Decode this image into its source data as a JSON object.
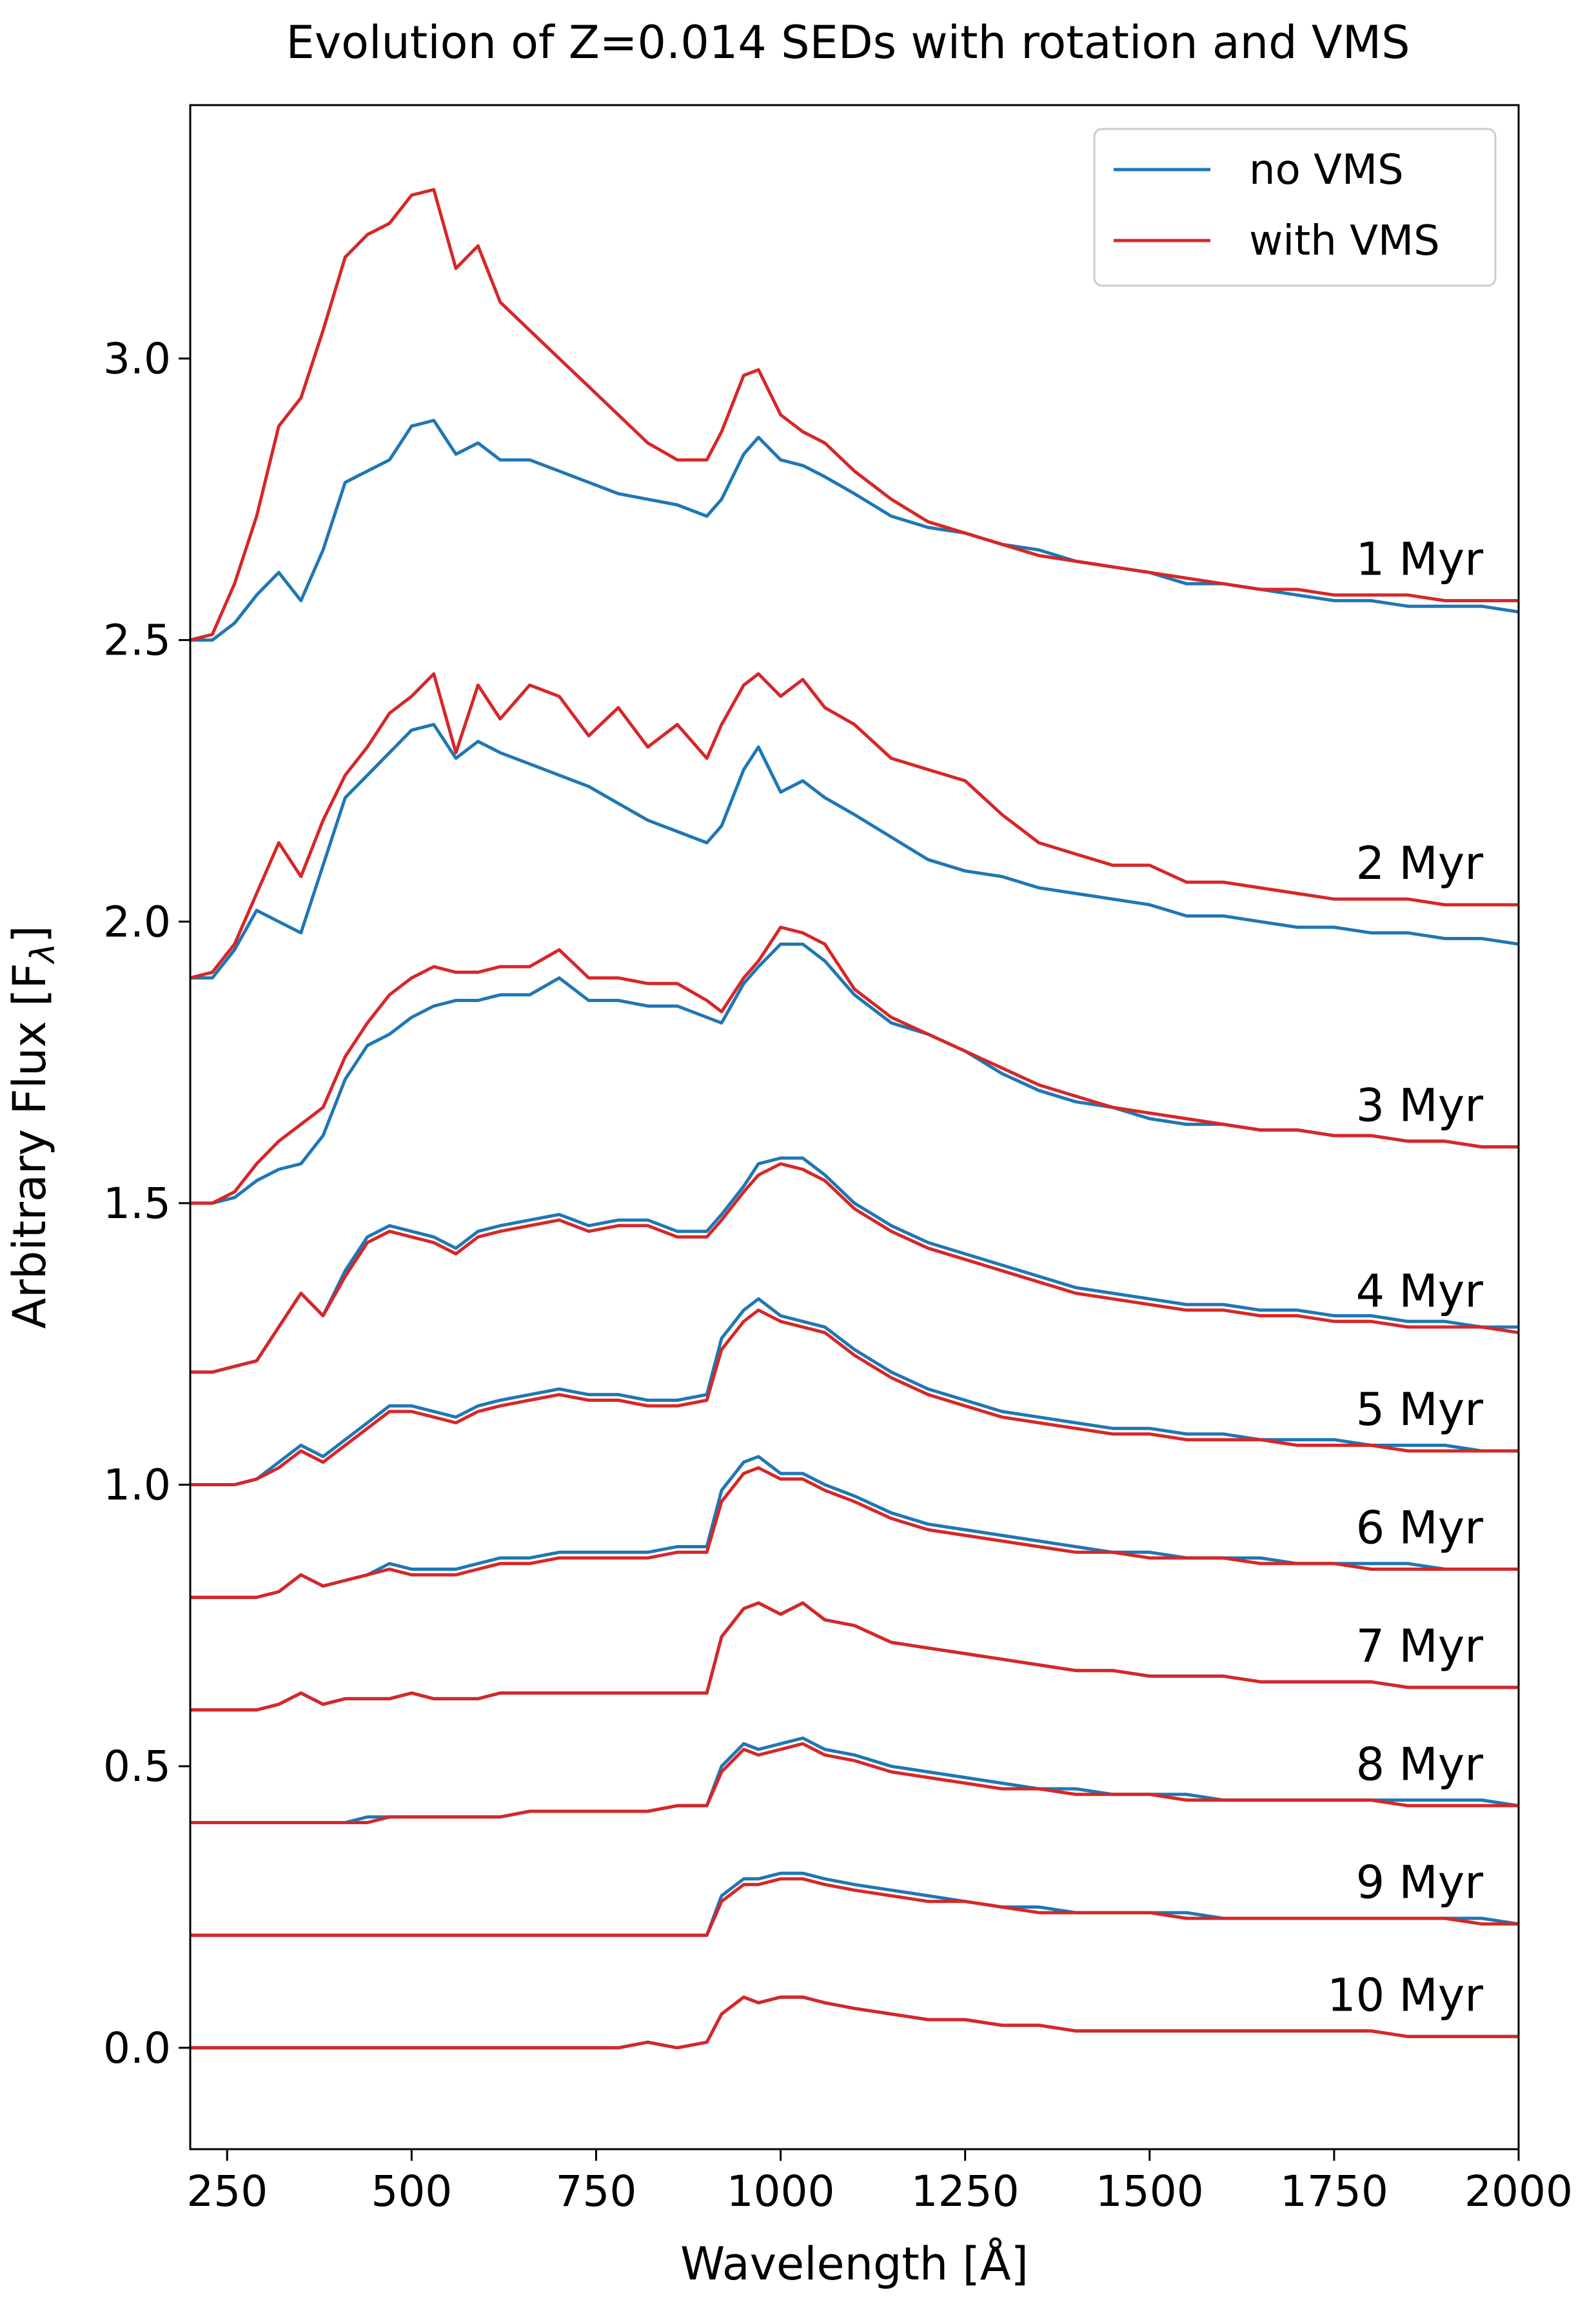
{
  "chart_data": {
    "type": "line",
    "title": "Evolution of Z=0.014 SEDs with rotation and VMS",
    "xlabel": "Wavelength [Å]",
    "ylabel": "Arbitrary Flux [F",
    "ylabel_sub": "λ",
    "ylabel_close": "]",
    "xlim": [
      200,
      2000
    ],
    "ylim": [
      -0.18,
      3.45
    ],
    "xticks": [
      250,
      500,
      750,
      1000,
      1250,
      1500,
      1750,
      2000
    ],
    "xtick_labels": [
      "250",
      "500",
      "750",
      "1000",
      "1250",
      "1500",
      "1750",
      "2000"
    ],
    "yticks": [
      0.0,
      0.5,
      1.0,
      1.5,
      2.0,
      2.5,
      3.0
    ],
    "ytick_labels": [
      "0.0",
      "0.5",
      "1.0",
      "1.5",
      "2.0",
      "2.5",
      "3.0"
    ],
    "legend": {
      "position": "top-right",
      "entries": [
        {
          "name": "no VMS",
          "color": "#1f77b4"
        },
        {
          "name": "with VMS",
          "color": "#d62728"
        }
      ]
    },
    "colors": {
      "no_vms": "#1f77b4",
      "with_vms": "#d62728"
    },
    "x": [
      200,
      230,
      260,
      290,
      320,
      350,
      380,
      410,
      440,
      470,
      500,
      530,
      560,
      590,
      620,
      660,
      700,
      740,
      780,
      820,
      860,
      900,
      920,
      950,
      970,
      1000,
      1030,
      1060,
      1100,
      1150,
      1200,
      1250,
      1300,
      1350,
      1400,
      1450,
      1500,
      1550,
      1600,
      1650,
      1700,
      1750,
      1800,
      1850,
      1900,
      1950,
      2000
    ],
    "series": [
      {
        "age": "1 Myr",
        "offset": 2.5,
        "no_vms": [
          2.5,
          2.5,
          2.53,
          2.58,
          2.62,
          2.57,
          2.66,
          2.78,
          2.8,
          2.82,
          2.88,
          2.89,
          2.83,
          2.85,
          2.82,
          2.82,
          2.8,
          2.78,
          2.76,
          2.75,
          2.74,
          2.72,
          2.75,
          2.83,
          2.86,
          2.82,
          2.81,
          2.79,
          2.76,
          2.72,
          2.7,
          2.69,
          2.67,
          2.66,
          2.64,
          2.63,
          2.62,
          2.6,
          2.6,
          2.59,
          2.58,
          2.57,
          2.57,
          2.56,
          2.56,
          2.56,
          2.55
        ],
        "with_vms": [
          2.5,
          2.51,
          2.6,
          2.72,
          2.88,
          2.93,
          3.05,
          3.18,
          3.22,
          3.24,
          3.29,
          3.3,
          3.16,
          3.2,
          3.1,
          3.05,
          3.0,
          2.95,
          2.9,
          2.85,
          2.82,
          2.82,
          2.87,
          2.97,
          2.98,
          2.9,
          2.87,
          2.85,
          2.8,
          2.75,
          2.71,
          2.69,
          2.67,
          2.65,
          2.64,
          2.63,
          2.62,
          2.61,
          2.6,
          2.59,
          2.59,
          2.58,
          2.58,
          2.58,
          2.57,
          2.57,
          2.57
        ]
      },
      {
        "age": "2 Myr",
        "offset": 1.9,
        "no_vms": [
          1.9,
          1.9,
          1.95,
          2.02,
          2.0,
          1.98,
          2.1,
          2.22,
          2.26,
          2.3,
          2.34,
          2.35,
          2.29,
          2.32,
          2.3,
          2.28,
          2.26,
          2.24,
          2.21,
          2.18,
          2.16,
          2.14,
          2.17,
          2.27,
          2.31,
          2.23,
          2.25,
          2.22,
          2.19,
          2.15,
          2.11,
          2.09,
          2.08,
          2.06,
          2.05,
          2.04,
          2.03,
          2.01,
          2.01,
          2.0,
          1.99,
          1.99,
          1.98,
          1.98,
          1.97,
          1.97,
          1.96
        ],
        "with_vms": [
          1.9,
          1.91,
          1.96,
          2.05,
          2.14,
          2.08,
          2.18,
          2.26,
          2.31,
          2.37,
          2.4,
          2.44,
          2.3,
          2.42,
          2.36,
          2.42,
          2.4,
          2.33,
          2.38,
          2.31,
          2.35,
          2.29,
          2.35,
          2.42,
          2.44,
          2.4,
          2.43,
          2.38,
          2.35,
          2.29,
          2.27,
          2.25,
          2.19,
          2.14,
          2.12,
          2.1,
          2.1,
          2.07,
          2.07,
          2.06,
          2.05,
          2.04,
          2.04,
          2.04,
          2.03,
          2.03,
          2.03
        ]
      },
      {
        "age": "3 Myr",
        "offset": 1.5,
        "no_vms": [
          1.5,
          1.5,
          1.51,
          1.54,
          1.56,
          1.57,
          1.62,
          1.72,
          1.78,
          1.8,
          1.83,
          1.85,
          1.86,
          1.86,
          1.87,
          1.87,
          1.9,
          1.86,
          1.86,
          1.85,
          1.85,
          1.83,
          1.82,
          1.89,
          1.92,
          1.96,
          1.96,
          1.93,
          1.87,
          1.82,
          1.8,
          1.77,
          1.73,
          1.7,
          1.68,
          1.67,
          1.65,
          1.64,
          1.64,
          1.63,
          1.63,
          1.62,
          1.62,
          1.61,
          1.61,
          1.6,
          1.6
        ],
        "with_vms": [
          1.5,
          1.5,
          1.52,
          1.57,
          1.61,
          1.64,
          1.67,
          1.76,
          1.82,
          1.87,
          1.9,
          1.92,
          1.91,
          1.91,
          1.92,
          1.92,
          1.95,
          1.9,
          1.9,
          1.89,
          1.89,
          1.86,
          1.84,
          1.9,
          1.93,
          1.99,
          1.98,
          1.96,
          1.88,
          1.83,
          1.8,
          1.77,
          1.74,
          1.71,
          1.69,
          1.67,
          1.66,
          1.65,
          1.64,
          1.63,
          1.63,
          1.62,
          1.62,
          1.61,
          1.61,
          1.6,
          1.6
        ]
      },
      {
        "age": "4 Myr",
        "offset": 1.2,
        "no_vms": [
          1.2,
          1.2,
          1.21,
          1.22,
          1.28,
          1.34,
          1.3,
          1.38,
          1.44,
          1.46,
          1.45,
          1.44,
          1.42,
          1.45,
          1.46,
          1.47,
          1.48,
          1.46,
          1.47,
          1.47,
          1.45,
          1.45,
          1.48,
          1.53,
          1.57,
          1.58,
          1.58,
          1.55,
          1.5,
          1.46,
          1.43,
          1.41,
          1.39,
          1.37,
          1.35,
          1.34,
          1.33,
          1.32,
          1.32,
          1.31,
          1.31,
          1.3,
          1.3,
          1.29,
          1.29,
          1.28,
          1.28
        ],
        "with_vms": [
          1.2,
          1.2,
          1.21,
          1.22,
          1.28,
          1.34,
          1.3,
          1.37,
          1.43,
          1.45,
          1.44,
          1.43,
          1.41,
          1.44,
          1.45,
          1.46,
          1.47,
          1.45,
          1.46,
          1.46,
          1.44,
          1.44,
          1.47,
          1.52,
          1.55,
          1.57,
          1.56,
          1.54,
          1.49,
          1.45,
          1.42,
          1.4,
          1.38,
          1.36,
          1.34,
          1.33,
          1.32,
          1.31,
          1.31,
          1.3,
          1.3,
          1.29,
          1.29,
          1.28,
          1.28,
          1.28,
          1.27
        ]
      },
      {
        "age": "5 Myr",
        "offset": 1.0,
        "no_vms": [
          1.0,
          1.0,
          1.0,
          1.01,
          1.04,
          1.07,
          1.05,
          1.08,
          1.11,
          1.14,
          1.14,
          1.13,
          1.12,
          1.14,
          1.15,
          1.16,
          1.17,
          1.16,
          1.16,
          1.15,
          1.15,
          1.16,
          1.26,
          1.31,
          1.33,
          1.3,
          1.29,
          1.28,
          1.24,
          1.2,
          1.17,
          1.15,
          1.13,
          1.12,
          1.11,
          1.1,
          1.1,
          1.09,
          1.09,
          1.08,
          1.08,
          1.08,
          1.07,
          1.07,
          1.07,
          1.06,
          1.06
        ],
        "with_vms": [
          1.0,
          1.0,
          1.0,
          1.01,
          1.03,
          1.06,
          1.04,
          1.07,
          1.1,
          1.13,
          1.13,
          1.12,
          1.11,
          1.13,
          1.14,
          1.15,
          1.16,
          1.15,
          1.15,
          1.14,
          1.14,
          1.15,
          1.24,
          1.29,
          1.31,
          1.29,
          1.28,
          1.27,
          1.23,
          1.19,
          1.16,
          1.14,
          1.12,
          1.11,
          1.1,
          1.09,
          1.09,
          1.08,
          1.08,
          1.08,
          1.07,
          1.07,
          1.07,
          1.06,
          1.06,
          1.06,
          1.06
        ]
      },
      {
        "age": "6 Myr",
        "offset": 0.8,
        "no_vms": [
          0.8,
          0.8,
          0.8,
          0.8,
          0.81,
          0.84,
          0.82,
          0.83,
          0.84,
          0.86,
          0.85,
          0.85,
          0.85,
          0.86,
          0.87,
          0.87,
          0.88,
          0.88,
          0.88,
          0.88,
          0.89,
          0.89,
          0.99,
          1.04,
          1.05,
          1.02,
          1.02,
          1.0,
          0.98,
          0.95,
          0.93,
          0.92,
          0.91,
          0.9,
          0.89,
          0.88,
          0.88,
          0.87,
          0.87,
          0.87,
          0.86,
          0.86,
          0.86,
          0.86,
          0.85,
          0.85,
          0.85
        ],
        "with_vms": [
          0.8,
          0.8,
          0.8,
          0.8,
          0.81,
          0.84,
          0.82,
          0.83,
          0.84,
          0.85,
          0.84,
          0.84,
          0.84,
          0.85,
          0.86,
          0.86,
          0.87,
          0.87,
          0.87,
          0.87,
          0.88,
          0.88,
          0.97,
          1.02,
          1.03,
          1.01,
          1.01,
          0.99,
          0.97,
          0.94,
          0.92,
          0.91,
          0.9,
          0.89,
          0.88,
          0.88,
          0.87,
          0.87,
          0.87,
          0.86,
          0.86,
          0.86,
          0.85,
          0.85,
          0.85,
          0.85,
          0.85
        ]
      },
      {
        "age": "7 Myr",
        "offset": 0.6,
        "no_vms": [
          0.6,
          0.6,
          0.6,
          0.6,
          0.61,
          0.63,
          0.61,
          0.62,
          0.62,
          0.62,
          0.63,
          0.62,
          0.62,
          0.62,
          0.63,
          0.63,
          0.63,
          0.63,
          0.63,
          0.63,
          0.63,
          0.63,
          0.73,
          0.78,
          0.79,
          0.77,
          0.79,
          0.76,
          0.75,
          0.72,
          0.71,
          0.7,
          0.69,
          0.68,
          0.67,
          0.67,
          0.66,
          0.66,
          0.66,
          0.65,
          0.65,
          0.65,
          0.65,
          0.64,
          0.64,
          0.64,
          0.64
        ],
        "with_vms": [
          0.6,
          0.6,
          0.6,
          0.6,
          0.61,
          0.63,
          0.61,
          0.62,
          0.62,
          0.62,
          0.63,
          0.62,
          0.62,
          0.62,
          0.63,
          0.63,
          0.63,
          0.63,
          0.63,
          0.63,
          0.63,
          0.63,
          0.73,
          0.78,
          0.79,
          0.77,
          0.79,
          0.76,
          0.75,
          0.72,
          0.71,
          0.7,
          0.69,
          0.68,
          0.67,
          0.67,
          0.66,
          0.66,
          0.66,
          0.65,
          0.65,
          0.65,
          0.65,
          0.64,
          0.64,
          0.64,
          0.64
        ]
      },
      {
        "age": "8 Myr",
        "offset": 0.4,
        "no_vms": [
          0.4,
          0.4,
          0.4,
          0.4,
          0.4,
          0.4,
          0.4,
          0.4,
          0.41,
          0.41,
          0.41,
          0.41,
          0.41,
          0.41,
          0.41,
          0.42,
          0.42,
          0.42,
          0.42,
          0.42,
          0.43,
          0.43,
          0.5,
          0.54,
          0.53,
          0.54,
          0.55,
          0.53,
          0.52,
          0.5,
          0.49,
          0.48,
          0.47,
          0.46,
          0.46,
          0.45,
          0.45,
          0.45,
          0.44,
          0.44,
          0.44,
          0.44,
          0.44,
          0.44,
          0.44,
          0.44,
          0.43
        ],
        "with_vms": [
          0.4,
          0.4,
          0.4,
          0.4,
          0.4,
          0.4,
          0.4,
          0.4,
          0.4,
          0.41,
          0.41,
          0.41,
          0.41,
          0.41,
          0.41,
          0.42,
          0.42,
          0.42,
          0.42,
          0.42,
          0.43,
          0.43,
          0.49,
          0.53,
          0.52,
          0.53,
          0.54,
          0.52,
          0.51,
          0.49,
          0.48,
          0.47,
          0.46,
          0.46,
          0.45,
          0.45,
          0.45,
          0.44,
          0.44,
          0.44,
          0.44,
          0.44,
          0.44,
          0.43,
          0.43,
          0.43,
          0.43
        ]
      },
      {
        "age": "9 Myr",
        "offset": 0.2,
        "no_vms": [
          0.2,
          0.2,
          0.2,
          0.2,
          0.2,
          0.2,
          0.2,
          0.2,
          0.2,
          0.2,
          0.2,
          0.2,
          0.2,
          0.2,
          0.2,
          0.2,
          0.2,
          0.2,
          0.2,
          0.2,
          0.2,
          0.2,
          0.27,
          0.3,
          0.3,
          0.31,
          0.31,
          0.3,
          0.29,
          0.28,
          0.27,
          0.26,
          0.25,
          0.25,
          0.24,
          0.24,
          0.24,
          0.24,
          0.23,
          0.23,
          0.23,
          0.23,
          0.23,
          0.23,
          0.23,
          0.23,
          0.22
        ],
        "with_vms": [
          0.2,
          0.2,
          0.2,
          0.2,
          0.2,
          0.2,
          0.2,
          0.2,
          0.2,
          0.2,
          0.2,
          0.2,
          0.2,
          0.2,
          0.2,
          0.2,
          0.2,
          0.2,
          0.2,
          0.2,
          0.2,
          0.2,
          0.26,
          0.29,
          0.29,
          0.3,
          0.3,
          0.29,
          0.28,
          0.27,
          0.26,
          0.26,
          0.25,
          0.24,
          0.24,
          0.24,
          0.24,
          0.23,
          0.23,
          0.23,
          0.23,
          0.23,
          0.23,
          0.23,
          0.23,
          0.22,
          0.22
        ]
      },
      {
        "age": "10 Myr",
        "offset": 0.0,
        "no_vms": [
          0.0,
          0.0,
          0.0,
          0.0,
          0.0,
          0.0,
          0.0,
          0.0,
          0.0,
          0.0,
          0.0,
          0.0,
          0.0,
          0.0,
          0.0,
          0.0,
          0.0,
          0.0,
          0.0,
          0.01,
          0.0,
          0.01,
          0.06,
          0.09,
          0.08,
          0.09,
          0.09,
          0.08,
          0.07,
          0.06,
          0.05,
          0.05,
          0.04,
          0.04,
          0.03,
          0.03,
          0.03,
          0.03,
          0.03,
          0.03,
          0.03,
          0.03,
          0.03,
          0.02,
          0.02,
          0.02,
          0.02
        ],
        "with_vms": [
          0.0,
          0.0,
          0.0,
          0.0,
          0.0,
          0.0,
          0.0,
          0.0,
          0.0,
          0.0,
          0.0,
          0.0,
          0.0,
          0.0,
          0.0,
          0.0,
          0.0,
          0.0,
          0.0,
          0.01,
          0.0,
          0.01,
          0.06,
          0.09,
          0.08,
          0.09,
          0.09,
          0.08,
          0.07,
          0.06,
          0.05,
          0.05,
          0.04,
          0.04,
          0.03,
          0.03,
          0.03,
          0.03,
          0.03,
          0.03,
          0.03,
          0.03,
          0.03,
          0.02,
          0.02,
          0.02,
          0.02
        ]
      }
    ]
  }
}
